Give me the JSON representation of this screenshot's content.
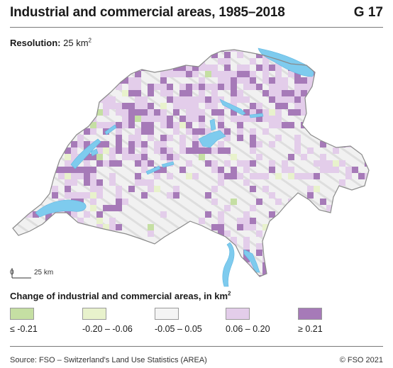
{
  "header": {
    "title": "Industrial and commercial areas, 1985–2018",
    "figure_id": "G 17"
  },
  "resolution": {
    "label": "Resolution:",
    "value": "25 km",
    "unit_exponent": "2"
  },
  "scale_bar": {
    "start": "0",
    "end": "25 km"
  },
  "legend": {
    "title": "Change of industrial and commercial areas, in km",
    "title_exponent": "2",
    "items": [
      {
        "label": "≤ -0.21",
        "color": "#c5dfa3"
      },
      {
        "label": "-0.20 – -0.06",
        "color": "#e8f2cc"
      },
      {
        "label": "-0.05 – 0.05",
        "color": "#f4f4f4"
      },
      {
        "label": "0.06 – 0.20",
        "color": "#e3cdea"
      },
      {
        "label": "≥ 0.21",
        "color": "#a67ab8"
      }
    ]
  },
  "colors": {
    "lakes": "#7ecbee",
    "relief": "#e9e9e9",
    "border": "#8a8a8a"
  },
  "footer": {
    "source": "Source: FSO – Switzerland's Land Use Statistics (AREA)",
    "copyright": "© FSO 2021"
  }
}
